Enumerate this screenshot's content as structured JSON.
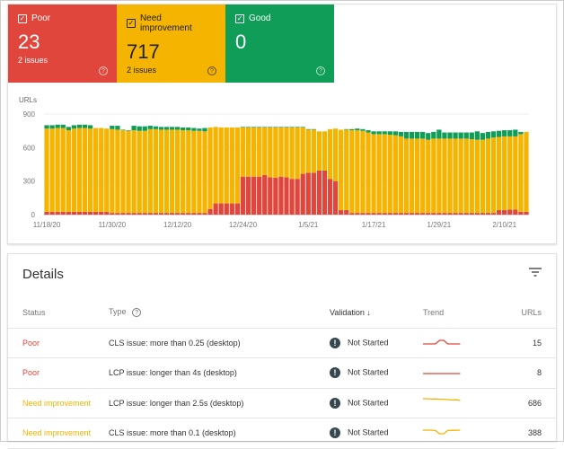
{
  "colors": {
    "poor": "#e0463b",
    "need": "#f5b400",
    "good": "#0f9d58"
  },
  "tiles": [
    {
      "label": "Poor",
      "value": "23",
      "issues": "2 issues",
      "color": "#e0463b",
      "text": "#ffffff"
    },
    {
      "label": "Need improvement",
      "value": "717",
      "issues": "2 issues",
      "color": "#f5b400",
      "text": "#202124"
    },
    {
      "label": "Good",
      "value": "0",
      "issues": "",
      "color": "#0f9d58",
      "text": "#ffffff"
    }
  ],
  "chart_data": {
    "type": "bar",
    "stacked": true,
    "ylabel": "URLs",
    "ylim": [
      0,
      900
    ],
    "yticks": [
      0,
      300,
      600,
      900
    ],
    "grid": true,
    "xtick_labels": [
      "11/18/20",
      "11/30/20",
      "12/12/20",
      "12/24/20",
      "1/5/21",
      "1/17/21",
      "1/29/21",
      "2/10/21"
    ],
    "dates": [
      "11/18/20",
      "11/19/20",
      "11/20/20",
      "11/21/20",
      "11/22/20",
      "11/23/20",
      "11/24/20",
      "11/25/20",
      "11/26/20",
      "11/27/20",
      "11/28/20",
      "11/29/20",
      "11/30/20",
      "12/1/20",
      "12/2/20",
      "12/3/20",
      "12/4/20",
      "12/5/20",
      "12/6/20",
      "12/7/20",
      "12/8/20",
      "12/9/20",
      "12/10/20",
      "12/11/20",
      "12/12/20",
      "12/13/20",
      "12/14/20",
      "12/15/20",
      "12/16/20",
      "12/17/20",
      "12/18/20",
      "12/19/20",
      "12/20/20",
      "12/21/20",
      "12/22/20",
      "12/23/20",
      "12/24/20",
      "12/25/20",
      "12/26/20",
      "12/27/20",
      "12/28/20",
      "12/29/20",
      "12/30/20",
      "12/31/20",
      "1/1/21",
      "1/2/21",
      "1/3/21",
      "1/4/21",
      "1/5/21",
      "1/6/21",
      "1/7/21",
      "1/8/21",
      "1/9/21",
      "1/10/21",
      "1/11/21",
      "1/12/21",
      "1/13/21",
      "1/14/21",
      "1/15/21",
      "1/16/21",
      "1/17/21",
      "1/18/21",
      "1/19/21",
      "1/20/21",
      "1/21/21",
      "1/22/21",
      "1/23/21",
      "1/24/21",
      "1/25/21",
      "1/26/21",
      "1/27/21",
      "1/28/21",
      "1/29/21",
      "1/30/21",
      "1/31/21",
      "2/1/21",
      "2/2/21",
      "2/3/21",
      "2/4/21",
      "2/5/21",
      "2/6/21",
      "2/7/21",
      "2/8/21",
      "2/9/21",
      "2/10/21",
      "2/11/21",
      "2/12/21",
      "2/13/21",
      "2/14/21"
    ],
    "series": [
      {
        "key": "poor",
        "values": [
          25,
          25,
          25,
          25,
          25,
          25,
          25,
          25,
          25,
          25,
          25,
          25,
          15,
          15,
          15,
          15,
          15,
          15,
          15,
          15,
          15,
          15,
          15,
          15,
          15,
          15,
          15,
          15,
          15,
          15,
          50,
          100,
          100,
          100,
          100,
          100,
          340,
          340,
          340,
          340,
          355,
          335,
          330,
          340,
          335,
          320,
          320,
          365,
          375,
          375,
          395,
          395,
          320,
          300,
          40,
          40,
          15,
          15,
          15,
          15,
          15,
          15,
          15,
          15,
          15,
          15,
          15,
          15,
          15,
          15,
          15,
          15,
          15,
          15,
          15,
          15,
          15,
          15,
          15,
          15,
          15,
          15,
          15,
          40,
          40,
          45,
          45,
          25,
          25
        ]
      },
      {
        "key": "need",
        "values": [
          745,
          745,
          750,
          750,
          730,
          745,
          750,
          750,
          745,
          750,
          750,
          745,
          750,
          745,
          740,
          735,
          740,
          735,
          735,
          750,
          750,
          745,
          745,
          745,
          745,
          740,
          740,
          735,
          735,
          730,
          730,
          685,
          680,
          680,
          680,
          680,
          440,
          440,
          440,
          440,
          425,
          445,
          450,
          440,
          445,
          460,
          460,
          415,
          385,
          385,
          350,
          350,
          445,
          470,
          720,
          720,
          740,
          740,
          735,
          720,
          705,
          705,
          705,
          700,
          695,
          685,
          665,
          665,
          665,
          665,
          655,
          665,
          665,
          665,
          665,
          665,
          665,
          665,
          660,
          655,
          655,
          665,
          675,
          655,
          660,
          655,
          655,
          695,
          715
        ]
      },
      {
        "key": "good",
        "values": [
          30,
          30,
          30,
          30,
          30,
          30,
          30,
          30,
          30,
          0,
          0,
          0,
          30,
          35,
          5,
          5,
          40,
          40,
          40,
          30,
          25,
          25,
          25,
          25,
          25,
          25,
          25,
          25,
          20,
          30,
          0,
          0,
          0,
          0,
          0,
          0,
          5,
          5,
          5,
          5,
          5,
          5,
          5,
          5,
          5,
          5,
          5,
          5,
          5,
          5,
          0,
          0,
          0,
          0,
          0,
          5,
          10,
          15,
          15,
          20,
          25,
          25,
          25,
          30,
          35,
          40,
          60,
          60,
          60,
          60,
          60,
          60,
          80,
          55,
          55,
          55,
          55,
          55,
          60,
          75,
          60,
          60,
          55,
          55,
          55,
          55,
          60,
          20,
          0
        ]
      }
    ]
  },
  "details": {
    "title": "Details",
    "columns": {
      "status": "Status",
      "type": "Type",
      "validation": "Validation",
      "trend": "Trend",
      "urls": "URLs"
    },
    "rows": [
      {
        "status": "Poor",
        "status_color": "#e0463b",
        "type": "CLS issue: more than 0.25 (desktop)",
        "validation": "Not Started",
        "urls": "15",
        "trend": [
          2,
          2,
          2,
          2,
          6,
          6,
          2,
          2,
          2,
          2
        ]
      },
      {
        "status": "Poor",
        "status_color": "#e0463b",
        "type": "LCP issue: longer than 4s (desktop)",
        "validation": "Not Started",
        "urls": "8",
        "trend": [
          2,
          2,
          2,
          2,
          2,
          2,
          2,
          2,
          2,
          2
        ]
      },
      {
        "status": "Need improvement",
        "status_color": "#f5b400",
        "type": "LCP issue: longer than 2.5s (desktop)",
        "validation": "Not Started",
        "urls": "686",
        "trend": [
          8,
          8,
          7.6,
          7.8,
          7.4,
          7.4,
          7,
          6.6,
          6.8,
          6
        ]
      },
      {
        "status": "Need improvement",
        "status_color": "#f5b400",
        "type": "CLS issue: more than 0.1 (desktop)",
        "validation": "Not Started",
        "urls": "388",
        "trend": [
          6,
          6,
          6,
          5.6,
          2,
          2,
          5.6,
          5.8,
          5.8,
          6
        ]
      }
    ]
  }
}
